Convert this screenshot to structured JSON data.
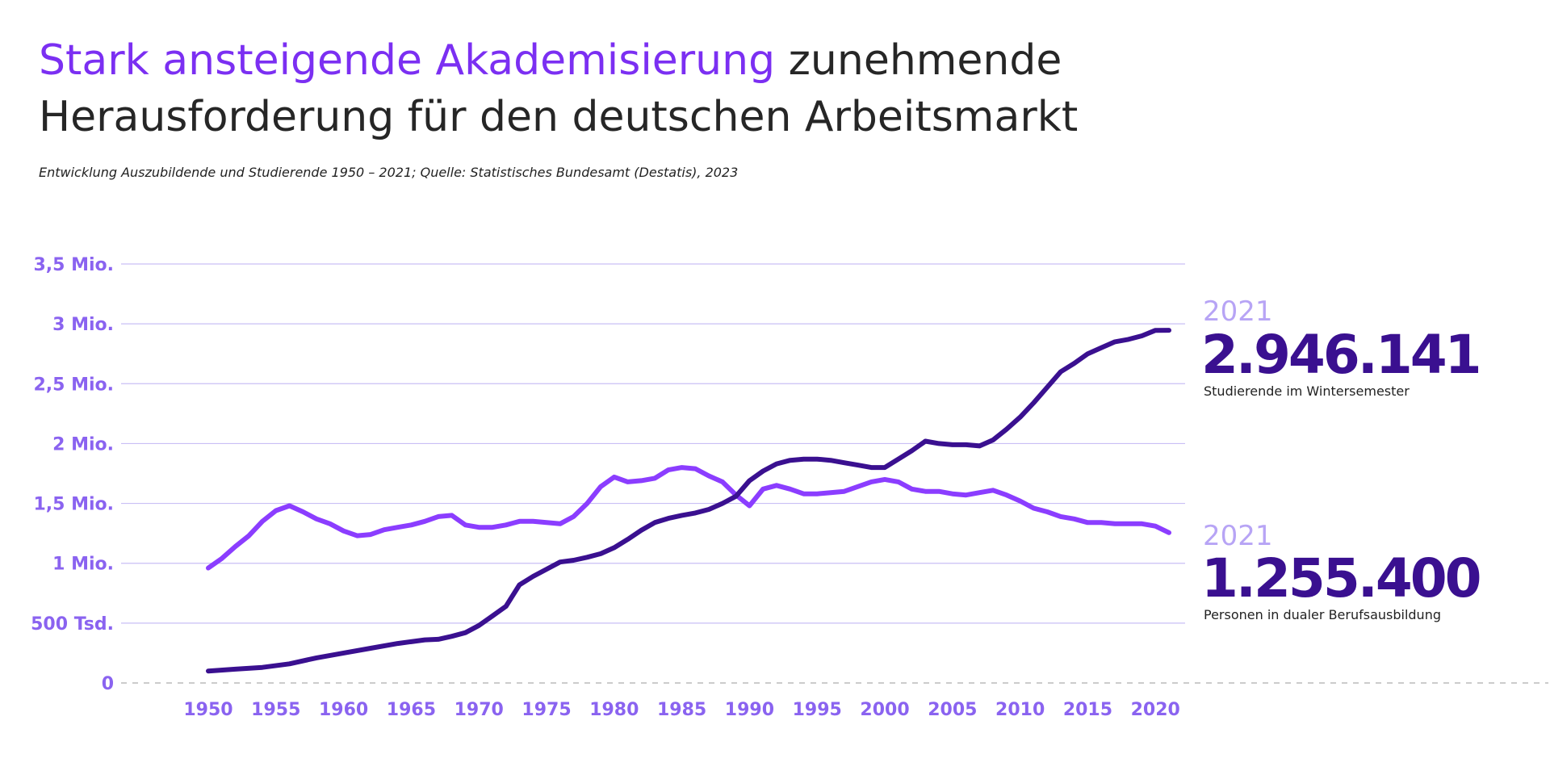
{
  "header": {
    "title_accent": "Stark ansteigende Akademisierung",
    "title_rest": " zunehmende Herausforderung für den deutschen Arbeitsmarkt",
    "subtitle": "Entwicklung Auszubildende und Studierende 1950 – 2021; Quelle: Statistisches Bundesamt (Destatis), 2023"
  },
  "callouts": {
    "students": {
      "year": "2021",
      "value": "2.946.141",
      "label": "Studierende im Wintersemester"
    },
    "apprentices": {
      "year": "2021",
      "value": "1.255.400",
      "label": "Personen in dualer Berufsausbildung"
    }
  },
  "colors": {
    "accent": "#7B2FF2",
    "students_line": "#3A1090",
    "apprentices_line": "#8B3DFF",
    "axis_label": "#8A63F0",
    "grid": "#C9BFF5",
    "callout_year": "#B7A4F5"
  },
  "chart_data": {
    "type": "line",
    "title": "",
    "xlabel": "",
    "ylabel": "",
    "xlim": [
      1950,
      2021
    ],
    "ylim": [
      0,
      3500000
    ],
    "grid": true,
    "yticks": [
      {
        "value": 0,
        "label": "0"
      },
      {
        "value": 500000,
        "label": "500 Tsd."
      },
      {
        "value": 1000000,
        "label": "1 Mio."
      },
      {
        "value": 1500000,
        "label": "1,5 Mio."
      },
      {
        "value": 2000000,
        "label": "2 Mio."
      },
      {
        "value": 2500000,
        "label": "2,5 Mio."
      },
      {
        "value": 3000000,
        "label": "3 Mio."
      },
      {
        "value": 3500000,
        "label": "3,5 Mio."
      }
    ],
    "xticks": [
      {
        "value": 1950,
        "label": "1950"
      },
      {
        "value": 1955,
        "label": "1955"
      },
      {
        "value": 1960,
        "label": "1960"
      },
      {
        "value": 1965,
        "label": "1965"
      },
      {
        "value": 1970,
        "label": "1970"
      },
      {
        "value": 1975,
        "label": "1975"
      },
      {
        "value": 1980,
        "label": "1980"
      },
      {
        "value": 1985,
        "label": "1985"
      },
      {
        "value": 1990,
        "label": "1990"
      },
      {
        "value": 1995,
        "label": "1995"
      },
      {
        "value": 2000,
        "label": "2000"
      },
      {
        "value": 2005,
        "label": "2005"
      },
      {
        "value": 2010,
        "label": "2010"
      },
      {
        "value": 2015,
        "label": "2015"
      },
      {
        "value": 2020,
        "label": "2020"
      }
    ],
    "series": [
      {
        "name": "Studierende im Wintersemester",
        "color": "#3A1090",
        "x": [
          1950,
          1952,
          1954,
          1956,
          1958,
          1960,
          1962,
          1964,
          1966,
          1967,
          1968,
          1969,
          1970,
          1971,
          1972,
          1973,
          1974,
          1975,
          1976,
          1977,
          1978,
          1979,
          1980,
          1981,
          1982,
          1983,
          1984,
          1985,
          1986,
          1987,
          1988,
          1989,
          1990,
          1991,
          1992,
          1993,
          1994,
          1995,
          1996,
          1997,
          1998,
          1999,
          2000,
          2001,
          2002,
          2003,
          2004,
          2005,
          2006,
          2007,
          2008,
          2009,
          2010,
          2011,
          2012,
          2013,
          2014,
          2015,
          2016,
          2017,
          2018,
          2019,
          2020,
          2021
        ],
        "values": [
          100000,
          115000,
          130000,
          160000,
          210000,
          250000,
          290000,
          330000,
          360000,
          365000,
          390000,
          420000,
          480000,
          560000,
          640000,
          820000,
          890000,
          950000,
          1010000,
          1025000,
          1050000,
          1080000,
          1130000,
          1200000,
          1275000,
          1340000,
          1375000,
          1400000,
          1420000,
          1450000,
          1500000,
          1560000,
          1690000,
          1770000,
          1830000,
          1860000,
          1870000,
          1870000,
          1860000,
          1840000,
          1820000,
          1800000,
          1800000,
          1870000,
          1940000,
          2020000,
          2000000,
          1990000,
          1990000,
          1980000,
          2030000,
          2120000,
          2220000,
          2340000,
          2470000,
          2600000,
          2670000,
          2750000,
          2800000,
          2850000,
          2870000,
          2900000,
          2946000,
          2946141
        ]
      },
      {
        "name": "Personen in dualer Berufsausbildung",
        "color": "#8B3DFF",
        "x": [
          1950,
          1951,
          1952,
          1953,
          1954,
          1955,
          1956,
          1957,
          1958,
          1959,
          1960,
          1961,
          1962,
          1963,
          1964,
          1965,
          1966,
          1967,
          1968,
          1969,
          1970,
          1971,
          1972,
          1973,
          1974,
          1975,
          1976,
          1977,
          1978,
          1979,
          1980,
          1981,
          1982,
          1983,
          1984,
          1985,
          1986,
          1987,
          1988,
          1989,
          1990,
          1991,
          1992,
          1993,
          1994,
          1995,
          1996,
          1997,
          1998,
          1999,
          2000,
          2001,
          2002,
          2003,
          2004,
          2005,
          2006,
          2007,
          2008,
          2009,
          2010,
          2011,
          2012,
          2013,
          2014,
          2015,
          2016,
          2017,
          2018,
          2019,
          2020,
          2021
        ],
        "values": [
          960000,
          1040000,
          1140000,
          1230000,
          1350000,
          1440000,
          1480000,
          1430000,
          1370000,
          1330000,
          1270000,
          1230000,
          1240000,
          1280000,
          1300000,
          1320000,
          1350000,
          1390000,
          1400000,
          1320000,
          1300000,
          1300000,
          1320000,
          1350000,
          1350000,
          1340000,
          1330000,
          1390000,
          1500000,
          1640000,
          1720000,
          1680000,
          1690000,
          1710000,
          1780000,
          1800000,
          1790000,
          1730000,
          1680000,
          1570000,
          1480000,
          1620000,
          1650000,
          1620000,
          1580000,
          1580000,
          1590000,
          1600000,
          1640000,
          1680000,
          1700000,
          1680000,
          1620000,
          1600000,
          1600000,
          1580000,
          1570000,
          1590000,
          1610000,
          1570000,
          1520000,
          1460000,
          1430000,
          1390000,
          1370000,
          1340000,
          1340000,
          1330000,
          1330000,
          1330000,
          1310000,
          1255400
        ]
      }
    ]
  }
}
